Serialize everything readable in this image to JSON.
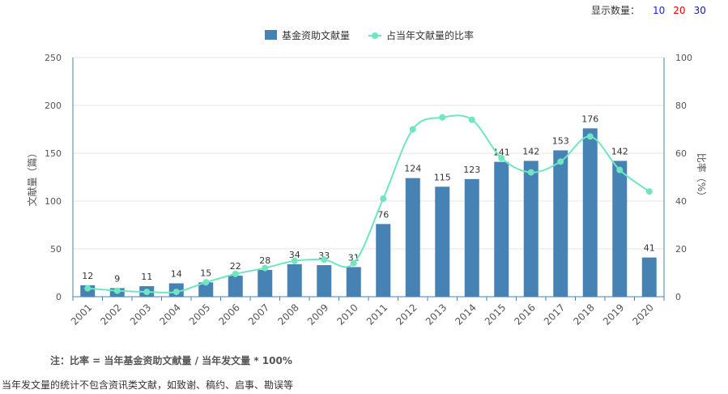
{
  "display_count": {
    "label": "显示数量：",
    "options": [
      {
        "text": "10",
        "color": "#1a1aff"
      },
      {
        "text": "20",
        "color": "#e60000"
      },
      {
        "text": "30",
        "color": "#1a1a99"
      }
    ]
  },
  "chart_data": {
    "type": "bar",
    "categories": [
      "2001",
      "2002",
      "2003",
      "2004",
      "2005",
      "2006",
      "2007",
      "2008",
      "2009",
      "2010",
      "2011",
      "2012",
      "2013",
      "2014",
      "2015",
      "2016",
      "2017",
      "2018",
      "2019",
      "2020"
    ],
    "series": [
      {
        "name": "基金资助文献量",
        "type": "bar",
        "axis": "left",
        "color": "#4682b4",
        "values": [
          12,
          9,
          11,
          14,
          15,
          22,
          28,
          34,
          33,
          31,
          76,
          124,
          115,
          123,
          141,
          142,
          153,
          176,
          142,
          41
        ]
      },
      {
        "name": "占当年文献量的比率",
        "type": "line",
        "axis": "right",
        "color": "#6ee6c0",
        "values": [
          3.5,
          2.5,
          2,
          2,
          6,
          9.5,
          12,
          15,
          15.5,
          14,
          41,
          70,
          75,
          74,
          58,
          52,
          56.5,
          67,
          53,
          44
        ]
      }
    ],
    "ylabel": "文献量（篇）",
    "ylabel_right": "比率（%）",
    "ylim": [
      0,
      250
    ],
    "ylim_right": [
      0,
      100
    ],
    "yticks": [
      0,
      50,
      100,
      150,
      200,
      250
    ],
    "yticks_right": [
      0,
      20,
      40,
      60,
      80,
      100
    ],
    "grid": true,
    "legend_position": "top-center"
  },
  "notes": {
    "formula": "注：比率 = 当年基金资助文献量 / 当年发文量 * 100%",
    "exclusion": "当年发文量的统计不包含资讯类文献，如致谢、稿约、启事、勘误等"
  }
}
